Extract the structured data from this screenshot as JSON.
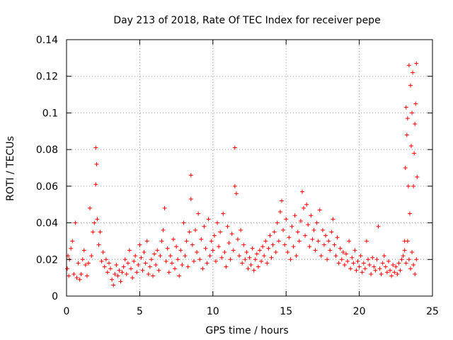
{
  "chart_data": {
    "type": "scatter",
    "title": "Day 213 of 2018, Rate Of TEC Index for receiver pepe",
    "xlabel": "GPS time / hours",
    "ylabel": "ROTI / TECUs",
    "xlim": [
      0,
      25
    ],
    "ylim": [
      0,
      0.14
    ],
    "x_ticks": [
      0,
      5,
      10,
      15,
      20,
      25
    ],
    "x_tick_labels": [
      "0",
      "5",
      "10",
      "15",
      "20",
      "25"
    ],
    "y_ticks": [
      0,
      0.02,
      0.04,
      0.06,
      0.08,
      0.1,
      0.12,
      0.14
    ],
    "y_tick_labels": [
      "0",
      "0.02",
      "0.04",
      "0.06",
      "0.08",
      "0.1",
      "0.12",
      "0.14"
    ],
    "grid": true,
    "marker": "+",
    "series": [
      {
        "name": "ROTI",
        "color": "#ff0000",
        "x": [
          0.05,
          0.1,
          0.15,
          0.2,
          0.3,
          0.4,
          0.5,
          0.6,
          0.7,
          0.8,
          0.9,
          1.0,
          1.1,
          1.2,
          1.3,
          1.4,
          1.5,
          1.6,
          1.7,
          1.8,
          1.9,
          2.0,
          2.0,
          2.05,
          2.1,
          2.2,
          2.3,
          2.4,
          2.5,
          2.6,
          2.7,
          2.8,
          2.9,
          3.0,
          3.1,
          3.2,
          3.3,
          3.4,
          3.5,
          3.6,
          3.7,
          3.8,
          3.9,
          4.0,
          4.1,
          4.2,
          4.3,
          4.4,
          4.5,
          4.6,
          4.7,
          4.8,
          4.9,
          5.0,
          5.1,
          5.2,
          5.3,
          5.4,
          5.5,
          5.6,
          5.7,
          5.8,
          5.9,
          6.0,
          6.1,
          6.2,
          6.3,
          6.4,
          6.5,
          6.6,
          6.7,
          6.8,
          6.9,
          7.0,
          7.1,
          7.2,
          7.3,
          7.4,
          7.5,
          7.6,
          7.7,
          7.8,
          7.9,
          8.0,
          8.1,
          8.2,
          8.3,
          8.4,
          8.5,
          8.5,
          8.6,
          8.7,
          8.8,
          8.9,
          9.0,
          9.1,
          9.2,
          9.3,
          9.4,
          9.5,
          9.6,
          9.7,
          9.8,
          9.9,
          10.0,
          10.1,
          10.2,
          10.3,
          10.4,
          10.5,
          10.6,
          10.7,
          10.8,
          10.9,
          11.0,
          11.1,
          11.2,
          11.3,
          11.4,
          11.5,
          11.5,
          11.6,
          11.7,
          11.8,
          11.9,
          12.0,
          12.1,
          12.2,
          12.3,
          12.4,
          12.5,
          12.6,
          12.7,
          12.8,
          12.9,
          13.0,
          13.1,
          13.2,
          13.3,
          13.4,
          13.5,
          13.6,
          13.7,
          13.8,
          13.9,
          14.0,
          14.1,
          14.2,
          14.3,
          14.4,
          14.5,
          14.6,
          14.7,
          14.8,
          14.9,
          15.0,
          15.1,
          15.2,
          15.3,
          15.4,
          15.5,
          15.6,
          15.7,
          15.8,
          15.9,
          16.0,
          16.1,
          16.2,
          16.3,
          16.4,
          16.5,
          16.6,
          16.7,
          16.8,
          16.9,
          17.0,
          17.1,
          17.2,
          17.3,
          17.4,
          17.5,
          17.6,
          17.7,
          17.8,
          17.9,
          18.0,
          18.1,
          18.2,
          18.3,
          18.4,
          18.5,
          18.6,
          18.7,
          18.8,
          18.9,
          19.0,
          19.1,
          19.2,
          19.3,
          19.4,
          19.5,
          19.6,
          19.7,
          19.8,
          19.9,
          20.0,
          20.1,
          20.2,
          20.3,
          20.4,
          20.5,
          20.6,
          20.7,
          20.8,
          20.9,
          21.0,
          21.1,
          21.2,
          21.3,
          21.4,
          21.5,
          21.6,
          21.7,
          21.8,
          21.9,
          22.0,
          22.1,
          22.2,
          22.3,
          22.4,
          22.5,
          22.6,
          22.7,
          22.8,
          22.9,
          23.0,
          23.1,
          23.15,
          23.2,
          23.25,
          23.3,
          23.35,
          23.4,
          23.45,
          23.5,
          23.55,
          23.6,
          23.65,
          23.7,
          23.75,
          23.8,
          23.85,
          23.9,
          23.95,
          23.1,
          23.2,
          23.3,
          23.4,
          23.5,
          23.6,
          23.7,
          23.8,
          23.9
        ],
        "y": [
          0.015,
          0.022,
          0.011,
          0.02,
          0.026,
          0.03,
          0.012,
          0.04,
          0.01,
          0.018,
          0.009,
          0.012,
          0.02,
          0.025,
          0.017,
          0.011,
          0.018,
          0.048,
          0.022,
          0.035,
          0.04,
          0.081,
          0.061,
          0.072,
          0.042,
          0.028,
          0.035,
          0.019,
          0.024,
          0.016,
          0.02,
          0.013,
          0.018,
          0.015,
          0.009,
          0.006,
          0.012,
          0.017,
          0.011,
          0.014,
          0.008,
          0.013,
          0.016,
          0.02,
          0.012,
          0.018,
          0.025,
          0.015,
          0.01,
          0.019,
          0.022,
          0.013,
          0.017,
          0.028,
          0.021,
          0.014,
          0.024,
          0.018,
          0.03,
          0.012,
          0.016,
          0.02,
          0.011,
          0.023,
          0.017,
          0.025,
          0.014,
          0.022,
          0.03,
          0.036,
          0.048,
          0.019,
          0.026,
          0.013,
          0.022,
          0.018,
          0.031,
          0.015,
          0.027,
          0.02,
          0.011,
          0.025,
          0.017,
          0.04,
          0.022,
          0.03,
          0.016,
          0.035,
          0.066,
          0.053,
          0.028,
          0.019,
          0.036,
          0.024,
          0.045,
          0.02,
          0.031,
          0.015,
          0.038,
          0.026,
          0.018,
          0.042,
          0.022,
          0.03,
          0.025,
          0.033,
          0.019,
          0.04,
          0.027,
          0.035,
          0.021,
          0.045,
          0.024,
          0.016,
          0.038,
          0.029,
          0.02,
          0.034,
          0.025,
          0.081,
          0.06,
          0.056,
          0.031,
          0.022,
          0.036,
          0.018,
          0.028,
          0.02,
          0.024,
          0.015,
          0.021,
          0.017,
          0.026,
          0.014,
          0.02,
          0.023,
          0.016,
          0.025,
          0.019,
          0.027,
          0.022,
          0.03,
          0.018,
          0.026,
          0.033,
          0.021,
          0.028,
          0.035,
          0.024,
          0.04,
          0.03,
          0.046,
          0.052,
          0.036,
          0.028,
          0.042,
          0.024,
          0.032,
          0.02,
          0.038,
          0.027,
          0.044,
          0.022,
          0.035,
          0.03,
          0.041,
          0.057,
          0.048,
          0.033,
          0.05,
          0.039,
          0.027,
          0.044,
          0.031,
          0.036,
          0.025,
          0.04,
          0.03,
          0.047,
          0.022,
          0.036,
          0.028,
          0.033,
          0.02,
          0.03,
          0.025,
          0.035,
          0.042,
          0.028,
          0.022,
          0.032,
          0.018,
          0.026,
          0.02,
          0.024,
          0.017,
          0.023,
          0.019,
          0.03,
          0.015,
          0.021,
          0.018,
          0.025,
          0.014,
          0.019,
          0.016,
          0.022,
          0.013,
          0.018,
          0.015,
          0.03,
          0.02,
          0.017,
          0.012,
          0.021,
          0.016,
          0.014,
          0.02,
          0.038,
          0.015,
          0.012,
          0.018,
          0.022,
          0.016,
          0.013,
          0.019,
          0.014,
          0.011,
          0.017,
          0.013,
          0.016,
          0.012,
          0.018,
          0.014,
          0.02,
          0.022,
          0.03,
          0.07,
          0.103,
          0.088,
          0.097,
          0.06,
          0.126,
          0.045,
          0.115,
          0.082,
          0.1,
          0.122,
          0.06,
          0.078,
          0.094,
          0.105,
          0.127,
          0.065,
          0.025,
          0.018,
          0.03,
          0.02,
          0.015,
          0.024,
          0.017,
          0.012,
          0.02
        ]
      }
    ]
  }
}
